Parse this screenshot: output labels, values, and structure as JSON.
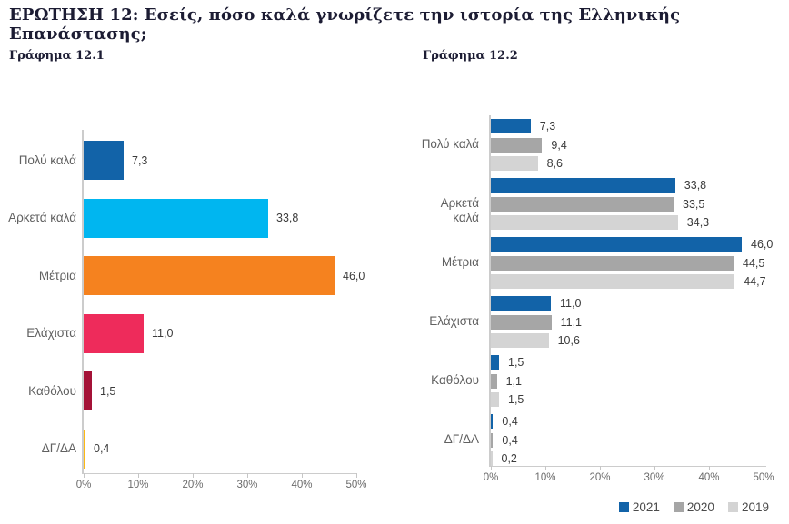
{
  "page": {
    "title": "ΕΡΩΤΗΣΗ 12: Εσείς, πόσο καλά γνωρίζετε την ιστορία της Ελληνικής Επανάστασης;"
  },
  "captions": {
    "left": "Γράφημα 12.1",
    "right": "Γράφημα 12.2"
  },
  "chart_data": [
    {
      "id": "grafima-12-1",
      "type": "bar",
      "orientation": "horizontal",
      "title": "Γράφημα 12.1",
      "categories": [
        "Πολύ καλά",
        "Αρκετά καλά",
        "Μέτρια",
        "Ελάχιστα",
        "Καθόλου",
        "ΔΓ/ΔΑ"
      ],
      "values": [
        7.3,
        33.8,
        46.0,
        11.0,
        1.5,
        0.4
      ],
      "value_labels": [
        "7,3",
        "33,8",
        "46,0",
        "11,0",
        "1,5",
        "0,4"
      ],
      "bar_colors": [
        "#1263A8",
        "#00B6F0",
        "#F5821F",
        "#EE2B5B",
        "#A41237",
        "#FDB913"
      ],
      "xlim": [
        0,
        50
      ],
      "x_ticks": [
        "0%",
        "10%",
        "20%",
        "30%",
        "40%",
        "50%"
      ],
      "grid": false,
      "legend": "none"
    },
    {
      "id": "grafima-12-2",
      "type": "bar",
      "orientation": "horizontal",
      "title": "Γράφημα 12.2",
      "categories": [
        "Πολύ καλά",
        "Αρκετά καλά",
        "Μέτρια",
        "Ελάχιστα",
        "Καθόλου",
        "ΔΓ/ΔΑ"
      ],
      "series": [
        {
          "name": "2021",
          "color": "#1263A8",
          "values": [
            7.3,
            33.8,
            46.0,
            11.0,
            1.5,
            0.4
          ],
          "value_labels": [
            "7,3",
            "33,8",
            "46,0",
            "11,0",
            "1,5",
            "0,4"
          ]
        },
        {
          "name": "2020",
          "color": "#A6A6A6",
          "values": [
            9.4,
            33.5,
            44.5,
            11.1,
            1.1,
            0.4
          ],
          "value_labels": [
            "9,4",
            "33,5",
            "44,5",
            "11,1",
            "1,1",
            "0,4"
          ]
        },
        {
          "name": "2019",
          "color": "#D4D4D4",
          "values": [
            8.6,
            34.3,
            44.7,
            10.6,
            1.5,
            0.2
          ],
          "value_labels": [
            "8,6",
            "34,3",
            "44,7",
            "10,6",
            "1,5",
            "0,2"
          ]
        }
      ],
      "xlim": [
        0,
        50
      ],
      "x_ticks": [
        "0%",
        "10%",
        "20%",
        "30%",
        "40%",
        "50%"
      ],
      "grid": false,
      "legend_position": "bottom-right"
    }
  ],
  "colors": {
    "title_text": "#1c1c33",
    "category_text": "#616161",
    "value_text": "#3b3b3b",
    "axis": "#cccccc",
    "background": "#ffffff"
  }
}
